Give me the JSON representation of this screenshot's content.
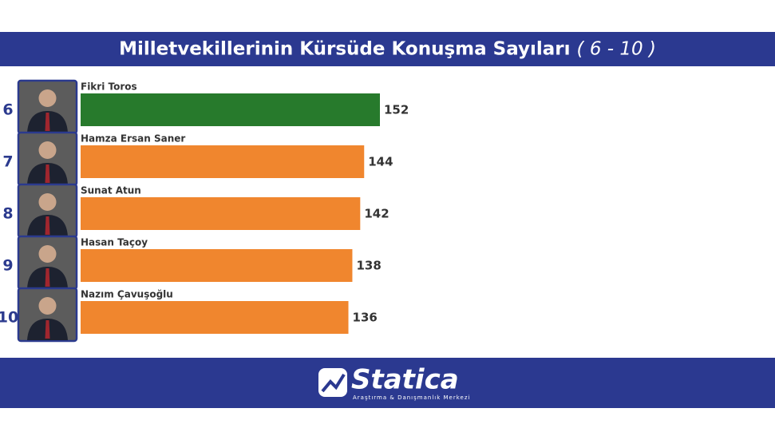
{
  "chart_data": {
    "type": "bar",
    "orientation": "horizontal",
    "title": "Milletvekillerinin Kürsüde Konuşma Sayıları",
    "subtitle": "( 6 - 10 )",
    "ranks": [
      6,
      7,
      8,
      9,
      10
    ],
    "categories": [
      "Fikri Toros",
      "Hamza Ersan Saner",
      "Sunat Atun",
      "Hasan Taçoy",
      "Nazım Çavuşoğlu"
    ],
    "values": [
      152,
      144,
      142,
      138,
      136
    ],
    "colors": [
      "#277a2c",
      "#f0862e",
      "#f0862e",
      "#f0862e",
      "#f0862e"
    ]
  },
  "footer": {
    "brand": "Statica",
    "tagline": "Araştırma & Danışmanlık Merkezi"
  }
}
